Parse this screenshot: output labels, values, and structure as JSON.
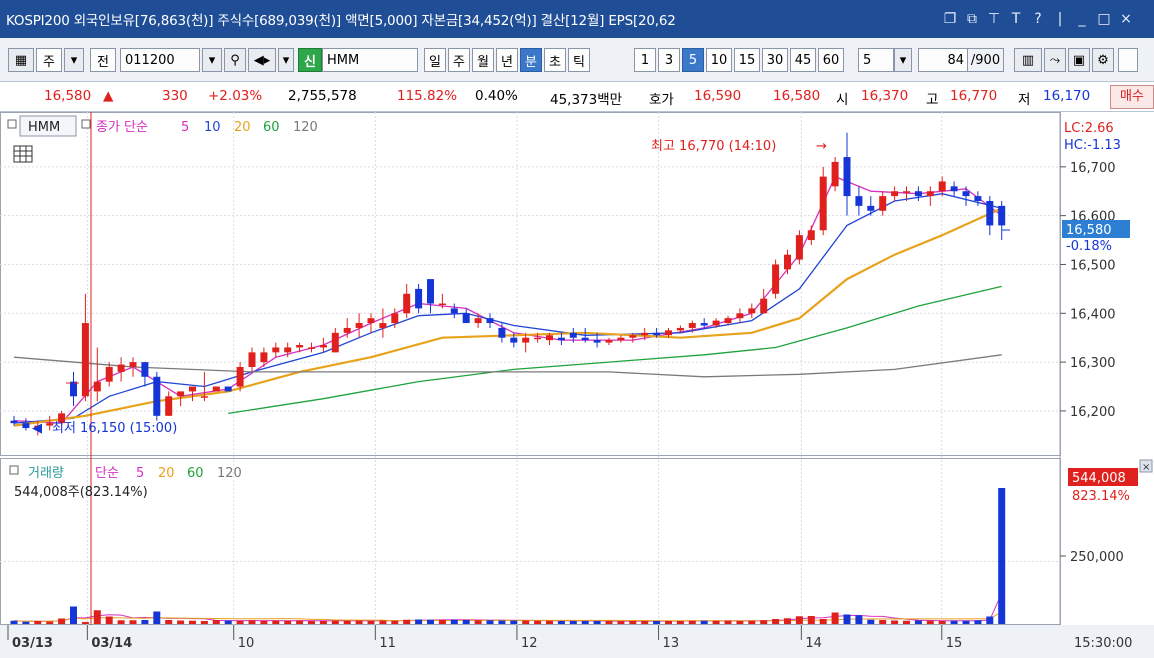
{
  "title_bar": {
    "text": "KOSPI200 외국인보유[76,863(천)] 주식수[689,039(천)] 액면[5,000] 자본금[34,452(억)] 결산[12월] EPS[20,62",
    "icons": [
      "restore-icon",
      "window-icon",
      "pin-icon",
      "font-icon",
      "help-icon",
      "separator",
      "minimize-icon",
      "maximize-icon",
      "close-icon"
    ],
    "glyphs": [
      "❐",
      "⧉",
      "⊤",
      "T",
      "?",
      "|",
      "_",
      "□",
      "×"
    ]
  },
  "toolbar": {
    "market_type": "주",
    "all_label": "전",
    "stock_code": "011200",
    "credit_label": "신",
    "stock_name": "HMM",
    "period_buttons": [
      "일",
      "주",
      "월",
      "년",
      "분",
      "초",
      "틱"
    ],
    "active_period": "분",
    "interval_buttons": [
      "1",
      "3",
      "5",
      "10",
      "15",
      "30",
      "45",
      "60"
    ],
    "active_interval": "5",
    "interval_select": "5",
    "count_value": "84",
    "count_max": "/900"
  },
  "quote_bar": {
    "price": "16,580",
    "price_arrow": "▲",
    "change": "330",
    "change_pct": "+2.03%",
    "volume": "2,755,578",
    "volume_ratio": "115.82%",
    "turnover": "0.40%",
    "amount": "45,373백만",
    "ask_label": "호가",
    "ask_price": "16,590",
    "bid_price": "16,580",
    "open_label": "시",
    "open_price": "16,370",
    "high_label": "고",
    "high_price": "16,770",
    "low_label": "저",
    "low_price": "16,170",
    "trade_button": "매수"
  },
  "price_panel": {
    "stock_badge": "HMM",
    "legend_title": "종가 단순",
    "ma_periods": [
      "5",
      "10",
      "20",
      "60",
      "120"
    ],
    "ma_colors": [
      "#d62fc1",
      "#2045d8",
      "#e8a31c",
      "#1fa33c",
      "#7a7a7a"
    ],
    "high_annotation": "최고 16,770 (14:10)",
    "low_annotation": "최저 16,150 (15:00)",
    "lc_label": "LC:2.66",
    "hc_label": "HC:-1.13",
    "current_price_label": "16,580",
    "current_pct_label": "-0.18%",
    "y_ticks": [
      "16,700",
      "16,600",
      "16,500",
      "16,400",
      "16,300",
      "16,200"
    ]
  },
  "volume_panel": {
    "legend_title": "거래량",
    "legend_ma": "단순",
    "ma_periods": [
      "5",
      "20",
      "60",
      "120"
    ],
    "current_label": "544,008주(823.14%)",
    "current_volume_tag": "544,008",
    "current_pct_tag": "823.14%",
    "y_ticks": [
      "250,000"
    ]
  },
  "x_axis": {
    "labels": [
      "03/13",
      "03/14",
      "10",
      "11",
      "12",
      "13",
      "14",
      "15"
    ],
    "time_label": "15:30:00"
  },
  "colors": {
    "up": "#e0201d",
    "down": "#1535d6",
    "title_bar": "#1f4e96"
  },
  "chart_data": {
    "type": "candlestick",
    "interval": "5분",
    "y_range": [
      16120,
      16800
    ],
    "candles": [
      [
        16180,
        16190,
        16170,
        16175
      ],
      [
        16175,
        16185,
        16160,
        16165
      ],
      [
        16165,
        16180,
        16150,
        16170
      ],
      [
        16170,
        16190,
        16160,
        16175
      ],
      [
        16175,
        16200,
        16170,
        16195
      ],
      [
        16260,
        16280,
        16210,
        16230
      ],
      [
        16230,
        16440,
        16220,
        16380
      ],
      [
        16240,
        16330,
        16220,
        16260
      ],
      [
        16260,
        16300,
        16250,
        16290
      ],
      [
        16280,
        16310,
        16260,
        16295
      ],
      [
        16290,
        16310,
        16270,
        16300
      ],
      [
        16300,
        16300,
        16250,
        16270
      ],
      [
        16270,
        16280,
        16180,
        16190
      ],
      [
        16190,
        16240,
        16190,
        16230
      ],
      [
        16230,
        16240,
        16210,
        16240
      ],
      [
        16240,
        16250,
        16220,
        16250
      ],
      [
        16230,
        16280,
        16220,
        16230
      ],
      [
        16240,
        16250,
        16240,
        16250
      ],
      [
        16250,
        16250,
        16240,
        16240
      ],
      [
        16250,
        16300,
        16240,
        16290
      ],
      [
        16290,
        16330,
        16280,
        16320
      ],
      [
        16300,
        16330,
        16290,
        16320
      ],
      [
        16320,
        16340,
        16310,
        16330
      ],
      [
        16320,
        16340,
        16310,
        16330
      ],
      [
        16330,
        16340,
        16320,
        16335
      ],
      [
        16330,
        16340,
        16320,
        16330
      ],
      [
        16330,
        16350,
        16320,
        16335
      ],
      [
        16320,
        16370,
        16320,
        16360
      ],
      [
        16360,
        16390,
        16350,
        16370
      ],
      [
        16370,
        16400,
        16350,
        16380
      ],
      [
        16380,
        16400,
        16360,
        16390
      ],
      [
        16370,
        16410,
        16350,
        16380
      ],
      [
        16380,
        16410,
        16370,
        16400
      ],
      [
        16400,
        16460,
        16390,
        16440
      ],
      [
        16450,
        16460,
        16400,
        16410
      ],
      [
        16470,
        16470,
        16400,
        16420
      ],
      [
        16420,
        16440,
        16410,
        16420
      ],
      [
        16410,
        16420,
        16390,
        16400
      ],
      [
        16400,
        16410,
        16380,
        16380
      ],
      [
        16380,
        16400,
        16370,
        16390
      ],
      [
        16390,
        16400,
        16370,
        16380
      ],
      [
        16370,
        16380,
        16340,
        16350
      ],
      [
        16350,
        16360,
        16330,
        16340
      ],
      [
        16340,
        16360,
        16320,
        16350
      ],
      [
        16350,
        16360,
        16340,
        16350
      ],
      [
        16345,
        16360,
        16335,
        16355
      ],
      [
        16350,
        16360,
        16335,
        16345
      ],
      [
        16360,
        16370,
        16340,
        16350
      ],
      [
        16350,
        16370,
        16340,
        16345
      ],
      [
        16345,
        16360,
        16330,
        16340
      ],
      [
        16340,
        16350,
        16335,
        16345
      ],
      [
        16345,
        16355,
        16340,
        16350
      ],
      [
        16350,
        16360,
        16340,
        16355
      ],
      [
        16355,
        16370,
        16345,
        16360
      ],
      [
        16360,
        16370,
        16350,
        16355
      ],
      [
        16355,
        16370,
        16350,
        16365
      ],
      [
        16365,
        16375,
        16360,
        16370
      ],
      [
        16370,
        16385,
        16360,
        16380
      ],
      [
        16380,
        16390,
        16370,
        16375
      ],
      [
        16375,
        16390,
        16370,
        16385
      ],
      [
        16380,
        16395,
        16375,
        16390
      ],
      [
        16390,
        16410,
        16380,
        16400
      ],
      [
        16400,
        16420,
        16390,
        16410
      ],
      [
        16400,
        16450,
        16400,
        16430
      ],
      [
        16440,
        16510,
        16430,
        16500
      ],
      [
        16490,
        16530,
        16480,
        16520
      ],
      [
        16510,
        16570,
        16500,
        16560
      ],
      [
        16550,
        16580,
        16540,
        16570
      ],
      [
        16570,
        16700,
        16560,
        16680
      ],
      [
        16660,
        16720,
        16650,
        16710
      ],
      [
        16720,
        16770,
        16600,
        16640
      ],
      [
        16640,
        16660,
        16600,
        16620
      ],
      [
        16620,
        16640,
        16600,
        16610
      ],
      [
        16610,
        16650,
        16600,
        16640
      ],
      [
        16640,
        16660,
        16630,
        16650
      ],
      [
        16650,
        16660,
        16630,
        16650
      ],
      [
        16650,
        16660,
        16630,
        16640
      ],
      [
        16640,
        16660,
        16620,
        16650
      ],
      [
        16650,
        16680,
        16640,
        16670
      ],
      [
        16660,
        16670,
        16640,
        16650
      ],
      [
        16650,
        16660,
        16620,
        16640
      ],
      [
        16640,
        16650,
        16620,
        16630
      ],
      [
        16630,
        16640,
        16560,
        16580
      ],
      [
        16620,
        16630,
        16550,
        16580
      ]
    ],
    "volumes": [
      13000,
      9000,
      12000,
      10000,
      22000,
      70000,
      8000,
      55000,
      30000,
      15000,
      15000,
      16000,
      50000,
      16000,
      14000,
      13000,
      12000,
      16000,
      14000,
      12000,
      15000,
      12000,
      14000,
      13000,
      14000,
      12000,
      12000,
      14000,
      13000,
      14000,
      12000,
      14000,
      13000,
      17000,
      18000,
      17000,
      16000,
      17000,
      16000,
      15000,
      15000,
      14000,
      14000,
      14000,
      13000,
      13000,
      12000,
      12000,
      12000,
      12000,
      12000,
      11000,
      12000,
      12000,
      12000,
      12000,
      12000,
      13000,
      13000,
      13000,
      13000,
      12000,
      13000,
      15000,
      20000,
      23000,
      31000,
      32000,
      20000,
      46000,
      38000,
      35000,
      17000,
      16000,
      14000,
      13000,
      14000,
      13000,
      12000,
      13000,
      13000,
      15000,
      30000,
      544008
    ],
    "ma_lines": {
      "5": [
        [
          0,
          16180
        ],
        [
          4,
          16175
        ],
        [
          7,
          16260
        ],
        [
          10,
          16290
        ],
        [
          14,
          16230
        ],
        [
          18,
          16245
        ],
        [
          22,
          16310
        ],
        [
          26,
          16335
        ],
        [
          30,
          16380
        ],
        [
          34,
          16420
        ],
        [
          38,
          16410
        ],
        [
          42,
          16360
        ],
        [
          46,
          16345
        ],
        [
          52,
          16345
        ],
        [
          58,
          16370
        ],
        [
          62,
          16400
        ],
        [
          66,
          16520
        ],
        [
          69,
          16680
        ],
        [
          72,
          16650
        ],
        [
          76,
          16645
        ],
        [
          80,
          16655
        ],
        [
          83,
          16600
        ]
      ],
      "10": [
        [
          0,
          16175
        ],
        [
          5,
          16185
        ],
        [
          8,
          16230
        ],
        [
          12,
          16260
        ],
        [
          16,
          16250
        ],
        [
          20,
          16280
        ],
        [
          26,
          16320
        ],
        [
          30,
          16360
        ],
        [
          34,
          16395
        ],
        [
          38,
          16400
        ],
        [
          42,
          16375
        ],
        [
          48,
          16355
        ],
        [
          56,
          16360
        ],
        [
          62,
          16385
        ],
        [
          66,
          16450
        ],
        [
          70,
          16580
        ],
        [
          74,
          16630
        ],
        [
          78,
          16645
        ],
        [
          83,
          16615
        ]
      ],
      "20": [
        [
          0,
          16170
        ],
        [
          6,
          16190
        ],
        [
          12,
          16220
        ],
        [
          18,
          16240
        ],
        [
          24,
          16280
        ],
        [
          30,
          16310
        ],
        [
          36,
          16350
        ],
        [
          42,
          16355
        ],
        [
          48,
          16360
        ],
        [
          56,
          16350
        ],
        [
          62,
          16360
        ],
        [
          66,
          16390
        ],
        [
          70,
          16470
        ],
        [
          74,
          16520
        ],
        [
          78,
          16560
        ],
        [
          83,
          16615
        ]
      ],
      "60": [
        [
          18,
          16195
        ],
        [
          26,
          16225
        ],
        [
          34,
          16260
        ],
        [
          42,
          16285
        ],
        [
          50,
          16300
        ],
        [
          58,
          16315
        ],
        [
          64,
          16330
        ],
        [
          70,
          16370
        ],
        [
          76,
          16415
        ],
        [
          83,
          16455
        ]
      ],
      "120": [
        [
          0,
          16310
        ],
        [
          10,
          16290
        ],
        [
          20,
          16280
        ],
        [
          30,
          16280
        ],
        [
          40,
          16280
        ],
        [
          50,
          16280
        ],
        [
          58,
          16270
        ],
        [
          66,
          16275
        ],
        [
          74,
          16285
        ],
        [
          83,
          16315
        ]
      ]
    }
  }
}
